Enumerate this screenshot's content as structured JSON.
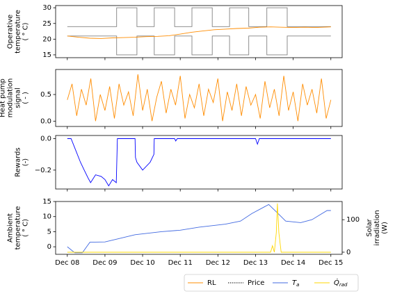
{
  "chart_data": [
    {
      "type": "line",
      "ylabel": [
        "Operative",
        "temperature",
        "( ° C)"
      ],
      "xlim": [
        -0.31,
        7.3
      ],
      "ylim": [
        14.1,
        30.7
      ],
      "yticks": [
        15,
        20,
        25,
        30
      ],
      "series": [
        {
          "color": "#808080",
          "x": [
            0,
            1.31,
            1.31,
            1.85,
            1.85,
            2.31,
            2.31,
            2.85,
            2.85,
            3.31,
            3.31,
            3.85,
            3.85,
            4.31,
            4.31,
            4.82,
            4.82,
            5.3,
            5.3,
            5.84,
            5.84,
            7
          ],
          "values": [
            24,
            24,
            30,
            30,
            24,
            24,
            30,
            30,
            24,
            24,
            30,
            30,
            24,
            24,
            30,
            30,
            24,
            24,
            30,
            30,
            24,
            24
          ]
        },
        {
          "color": "#808080",
          "x": [
            0,
            1.31,
            1.31,
            1.85,
            1.85,
            2.31,
            2.31,
            2.85,
            2.85,
            3.31,
            3.31,
            3.85,
            3.85,
            4.31,
            4.31,
            4.82,
            4.82,
            5.3,
            5.3,
            5.84,
            5.84,
            7
          ],
          "values": [
            21,
            21,
            15,
            15,
            21,
            21,
            15,
            15,
            21,
            21,
            15,
            15,
            21,
            21,
            15,
            15,
            21,
            21,
            15,
            15,
            21,
            21
          ]
        },
        {
          "color": "#ff8c00",
          "x": [
            0,
            0.3,
            0.6,
            0.9,
            1.2,
            1.5,
            1.8,
            2.1,
            2.4,
            2.7,
            3.0,
            3.3,
            3.6,
            3.9,
            4.2,
            4.5,
            4.8,
            5.1,
            5.4,
            5.7,
            6.0,
            6.3,
            6.6,
            7
          ],
          "values": [
            21,
            20.6,
            20.3,
            20.2,
            20.4,
            20.5,
            20.6,
            20.8,
            20.9,
            21.1,
            21.6,
            22.2,
            22.6,
            23.0,
            23.2,
            23.4,
            23.5,
            23.8,
            23.9,
            23.8,
            23.7,
            23.8,
            23.7,
            23.9
          ]
        }
      ]
    },
    {
      "type": "line",
      "ylabel": [
        "Heat pump",
        "modulation",
        "signal",
        "( - )"
      ],
      "xlim": [
        -0.31,
        7.3
      ],
      "ylim": [
        -0.1,
        0.97
      ],
      "yticks": [
        {
          "value": 0,
          "label": "0.0"
        },
        0.5
      ],
      "series": [
        {
          "color": "#ff8c00",
          "x": [
            0,
            0.125,
            0.25,
            0.375,
            0.5,
            0.625,
            0.75,
            0.875,
            1,
            1.125,
            1.25,
            1.375,
            1.5,
            1.625,
            1.75,
            1.875,
            2,
            2.125,
            2.25,
            2.375,
            2.5,
            2.625,
            2.75,
            2.875,
            3,
            3.125,
            3.25,
            3.375,
            3.5,
            3.625,
            3.75,
            3.875,
            4,
            4.125,
            4.25,
            4.375,
            4.5,
            4.625,
            4.75,
            4.875,
            5,
            5.125,
            5.25,
            5.375,
            5.5,
            5.625,
            5.75,
            5.875,
            6,
            6.125,
            6.25,
            6.375,
            6.5,
            6.625,
            6.75,
            6.875,
            7
          ],
          "values": [
            0.4,
            0.7,
            0.1,
            0.6,
            0.3,
            0.8,
            0,
            0.5,
            0.2,
            0.65,
            0.05,
            0.7,
            0.3,
            0.55,
            0.1,
            0.88,
            0.2,
            0.6,
            0,
            0.45,
            0.75,
            0.15,
            0.6,
            0.3,
            0.85,
            0.05,
            0.5,
            0.25,
            0.7,
            0.1,
            0.6,
            0.35,
            0.8,
            0,
            0.55,
            0.2,
            0.7,
            0.1,
            0.65,
            0.3,
            0.5,
            0.05,
            0.75,
            0.25,
            0.6,
            0.1,
            0.85,
            0.2,
            0.55,
            0,
            0.7,
            0.3,
            0.6,
            0.15,
            0.8,
            0.05,
            0.4
          ]
        }
      ]
    },
    {
      "type": "line",
      "ylabel": [
        "Rewards",
        "(-)"
      ],
      "xlim": [
        -0.31,
        7.3
      ],
      "ylim": [
        -0.32,
        0.02
      ],
      "yticks": [
        {
          "value": 0,
          "label": "0.0"
        },
        {
          "value": -0.2,
          "label": "−0.2"
        }
      ],
      "series": [
        {
          "color": "#0000ff",
          "x": [
            0,
            0.1,
            0.2,
            0.35,
            0.45,
            0.55,
            0.62,
            0.75,
            0.9,
            1.0,
            1.1,
            1.2,
            1.3,
            1.33,
            1.8,
            1.81,
            1.85,
            2.0,
            2.2,
            2.3,
            2.31,
            2.85,
            2.88,
            2.92,
            5.0,
            5.05,
            5.1,
            7
          ],
          "values": [
            0,
            0,
            -0.06,
            -0.15,
            -0.2,
            -0.25,
            -0.28,
            -0.23,
            -0.24,
            -0.26,
            -0.3,
            -0.26,
            -0.28,
            0,
            0,
            -0.12,
            -0.15,
            -0.2,
            -0.15,
            -0.1,
            0,
            0,
            -0.015,
            0,
            0,
            -0.035,
            0,
            0
          ]
        }
      ]
    },
    {
      "type": "line",
      "ylabel": [
        "Ambient",
        "temperature",
        "( ° C)"
      ],
      "y2label": [
        "Solar",
        "irradiation",
        "(W)"
      ],
      "xlim": [
        -0.31,
        7.3
      ],
      "xticks": [
        {
          "value": 0,
          "label": "Dec 08"
        },
        {
          "value": 1,
          "label": "Dec 09"
        },
        {
          "value": 2,
          "label": "Dec 10"
        },
        {
          "value": 3,
          "label": "Dec 11"
        },
        {
          "value": 4,
          "label": "Dec 12"
        },
        {
          "value": 5,
          "label": "Dec 13"
        },
        {
          "value": 6,
          "label": "Dec 14"
        },
        {
          "value": 7,
          "label": "Dec 15"
        }
      ],
      "ylim": [
        -2.5,
        15
      ],
      "yticks": [
        0,
        5,
        10,
        15
      ],
      "y2lim": [
        -6.5,
        156
      ],
      "y2ticks": [
        0,
        100
      ],
      "series": [
        {
          "color": "#4169e1",
          "x": [
            0,
            0.1,
            0.2,
            0.4,
            0.6,
            1.0,
            1.3,
            1.8,
            2.5,
            3.0,
            3.5,
            4.2,
            4.6,
            4.9,
            5.2,
            5.35,
            5.6,
            5.8,
            6.2,
            6.5,
            6.7,
            6.9,
            7
          ],
          "values": [
            0,
            -1,
            -2,
            -2,
            1.5,
            1.6,
            2.5,
            4,
            5,
            5.5,
            6.5,
            7.5,
            8.5,
            11,
            13,
            14,
            11,
            8.5,
            8,
            9,
            10.5,
            12,
            12
          ]
        },
        {
          "color": "#ffd700",
          "axis": "y2",
          "x": [
            0,
            5.4,
            5.45,
            5.5,
            5.55,
            5.58,
            5.62,
            5.68,
            7
          ],
          "values": [
            0,
            0,
            20,
            0,
            60,
            150,
            60,
            0,
            0
          ]
        }
      ]
    }
  ],
  "legend": {
    "entries": [
      {
        "name": "RL",
        "color": "#ff8c00",
        "style": "solid"
      },
      {
        "name": "Price",
        "color": "#000000",
        "style": "dotted"
      },
      {
        "name": "T",
        "subscript": "a",
        "color": "#4169e1",
        "style": "solid"
      },
      {
        "name": "Q̇",
        "subscript": "rad",
        "color": "#ffd700",
        "style": "solid"
      }
    ]
  }
}
